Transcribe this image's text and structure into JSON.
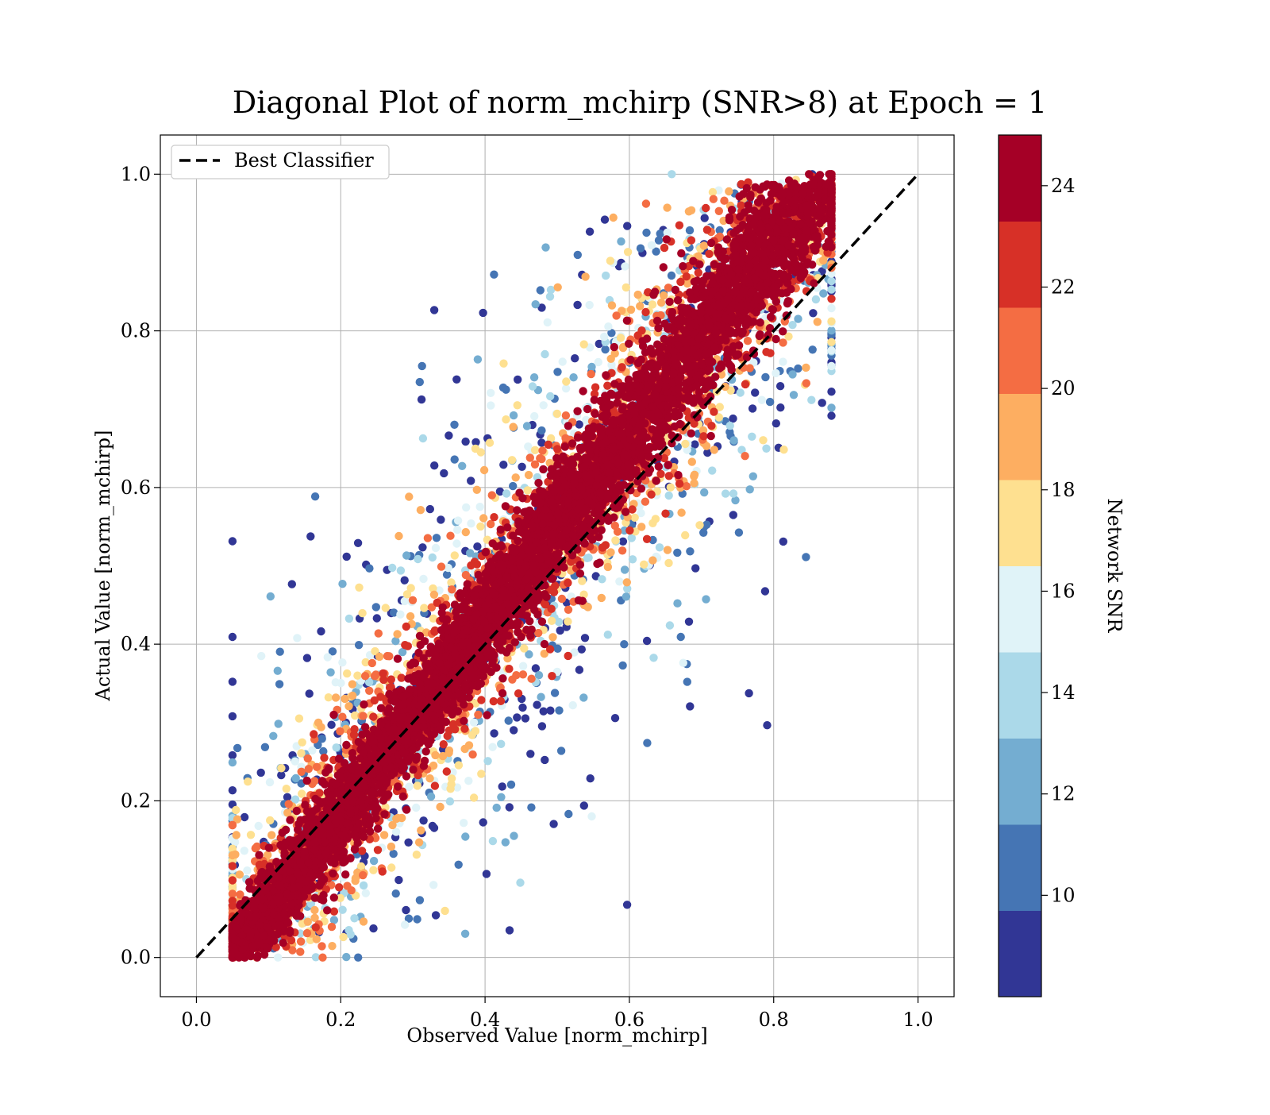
{
  "chart_data": {
    "type": "scatter",
    "title": "Diagonal Plot of norm_mchirp (SNR>8) at Epoch = 1",
    "xlabel": "Observed Value [norm_mchirp]",
    "ylabel": "Actual Value [norm_mchirp]",
    "xlim": [
      -0.05,
      1.05
    ],
    "ylim": [
      -0.05,
      1.05
    ],
    "xticks": [
      "0.0",
      "0.2",
      "0.4",
      "0.6",
      "0.8",
      "1.0"
    ],
    "yticks": [
      "0.0",
      "0.2",
      "0.4",
      "0.6",
      "0.8",
      "1.0"
    ],
    "grid": true,
    "legend": {
      "location": "upper-left",
      "entries": [
        {
          "label": "Best Classifier",
          "style": "dashed",
          "color": "#000000"
        }
      ]
    },
    "reference_line": {
      "name": "Best Classifier",
      "x": [
        0,
        1
      ],
      "y": [
        0,
        1
      ]
    },
    "scatter_summary": {
      "approx_points": 9000,
      "observed_range": [
        0.05,
        0.88
      ],
      "actual_range": [
        0.0,
        1.0
      ],
      "trend": "points cluster along y = x; high-SNR points lie closest to the diagonal, low-SNR points spread furthest"
    },
    "colorbar": {
      "label": "Network SNR",
      "min": 8,
      "max": 25,
      "ticks": [
        "10",
        "12",
        "14",
        "16",
        "18",
        "20",
        "22",
        "24"
      ],
      "tick_values": [
        10,
        12,
        14,
        16,
        18,
        20,
        22,
        24
      ],
      "colors": [
        "#313695",
        "#4575b4",
        "#74add1",
        "#abd9e9",
        "#e0f3f8",
        "#fee090",
        "#fdae61",
        "#f46d43",
        "#d73027",
        "#a50026"
      ],
      "levels": 10
    }
  }
}
